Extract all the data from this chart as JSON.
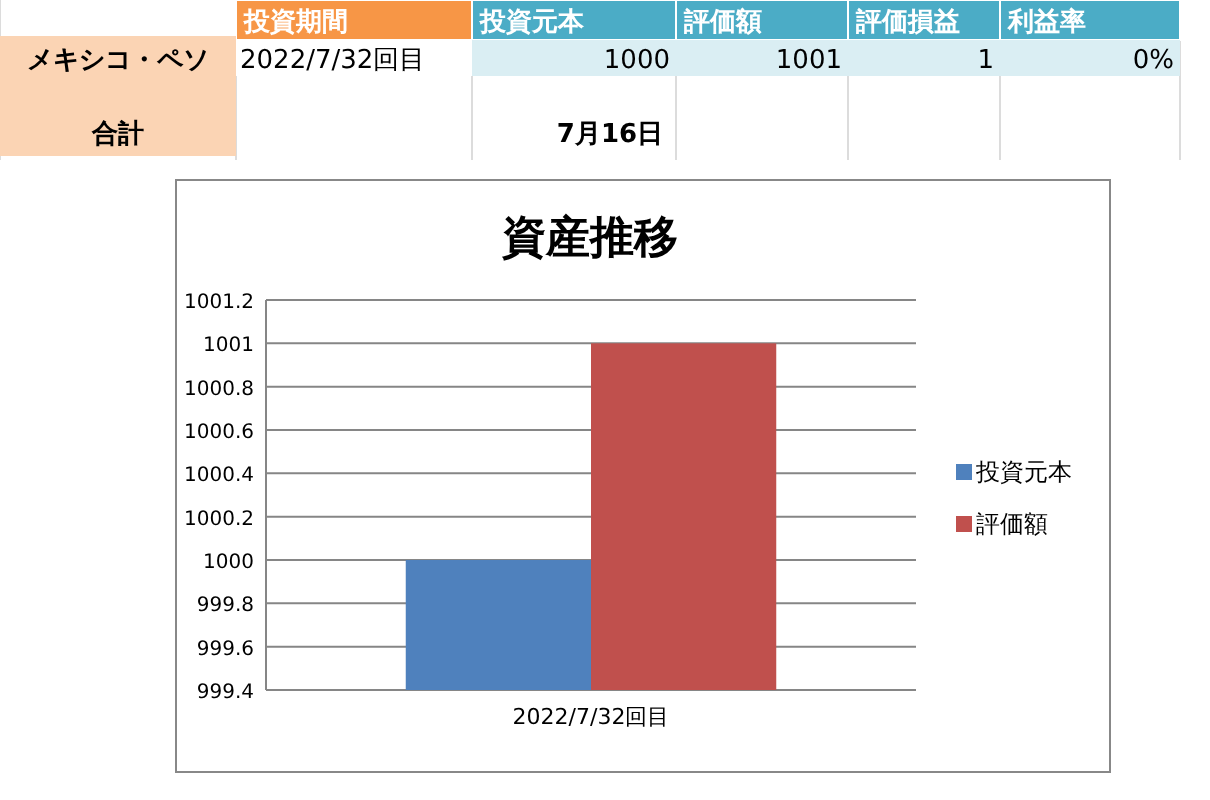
{
  "chart_data": [
    {
      "type": "other",
      "annotations": [
        "投資期間",
        "投資元本",
        "評価額",
        "評価損益",
        "利益率",
        "メキシコ・ペソ",
        "2022/7/32回目",
        "1000",
        "1001",
        "1",
        "0%",
        "合計",
        "7月16日"
      ]
    },
    {
      "type": "bar",
      "title": "資産推移",
      "categories": [
        "2022/7/32回目"
      ],
      "series": [
        {
          "name": "投資元本",
          "color": "#4f81bd",
          "values": [
            1000
          ]
        },
        {
          "name": "評価額",
          "color": "#c0504d",
          "values": [
            1001
          ]
        }
      ],
      "ylim": [
        999.4,
        1001.2
      ],
      "yticks": [
        999.4,
        999.6,
        999.8,
        1000,
        1000.2,
        1000.4,
        1000.6,
        1000.8,
        1001,
        1001.2
      ],
      "grid": "y",
      "legend": "right"
    }
  ]
}
